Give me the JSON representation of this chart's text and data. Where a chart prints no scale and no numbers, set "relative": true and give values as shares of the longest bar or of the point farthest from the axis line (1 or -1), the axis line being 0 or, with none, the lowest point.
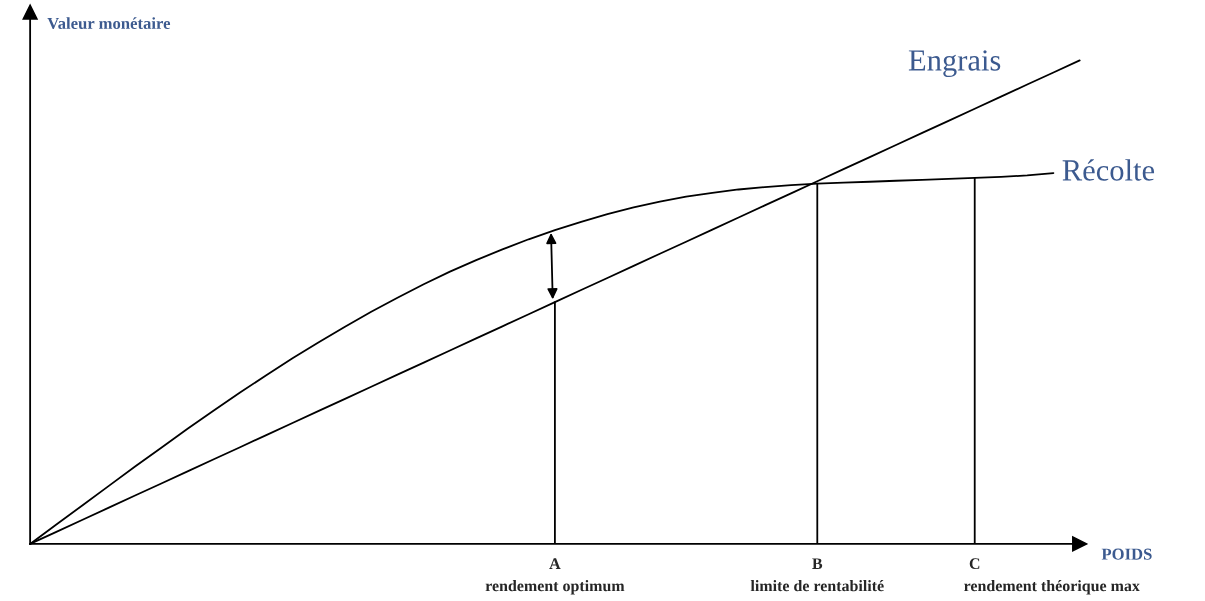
{
  "chart_data": {
    "type": "line",
    "relative": true,
    "ylabel": "Valeur monétaire",
    "xlabel": "POIDS",
    "categories": [
      null,
      null,
      null,
      null,
      null,
      null,
      null,
      null,
      null,
      null,
      null,
      null,
      null,
      null,
      null,
      null,
      null,
      null,
      null,
      null,
      "A",
      null,
      null,
      null,
      null,
      null,
      null,
      null,
      null,
      null,
      "B",
      null,
      null,
      null,
      null,
      null,
      "C",
      null,
      null,
      null,
      null
    ],
    "annotations": [
      {
        "text": "rendement optimum",
        "x": "A",
        "y": 0
      },
      {
        "text": "limite de rentabilité",
        "x": "B",
        "y": 0
      },
      {
        "text": "rendement théorique max",
        "x": "C",
        "y": 0
      }
    ],
    "series": [
      {
        "name": "Engrais",
        "color": "#000000",
        "values": [
          0,
          0.025,
          0.05,
          0.075,
          0.1,
          0.125,
          0.15,
          0.175,
          0.2,
          0.225,
          0.25,
          0.275,
          0.3,
          0.325,
          0.35,
          0.375,
          0.4,
          0.425,
          0.45,
          0.475,
          0.5,
          0.525,
          0.55,
          0.575,
          0.6,
          0.625,
          0.65,
          0.675,
          0.7,
          0.725,
          0.75,
          0.775,
          0.8,
          0.825,
          0.85,
          0.875,
          0.9,
          0.925,
          0.95,
          0.975,
          1
        ]
      },
      {
        "name": "Récolte",
        "color": "#000000",
        "values": [
          0,
          0.04,
          0.08,
          0.12,
          0.16,
          0.199,
          0.238,
          0.276,
          0.313,
          0.349,
          0.384,
          0.417,
          0.449,
          0.48,
          0.509,
          0.537,
          0.563,
          0.587,
          0.609,
          0.63,
          0.649,
          0.666,
          0.682,
          0.696,
          0.708,
          0.718,
          0.726,
          0.733,
          0.738,
          0.742,
          0.745,
          0.747,
          0.749,
          0.751,
          0.753,
          0.755,
          0.757,
          0.759,
          0.762,
          0.767,
          null
        ]
      }
    ],
    "ref_lines": [
      {
        "axis": "x",
        "value": "A",
        "color": "#000000"
      },
      {
        "axis": "x",
        "value": "B",
        "color": "#000000"
      },
      {
        "axis": "x",
        "value": "C",
        "color": "#000000"
      }
    ],
    "line_style": "solid"
  }
}
